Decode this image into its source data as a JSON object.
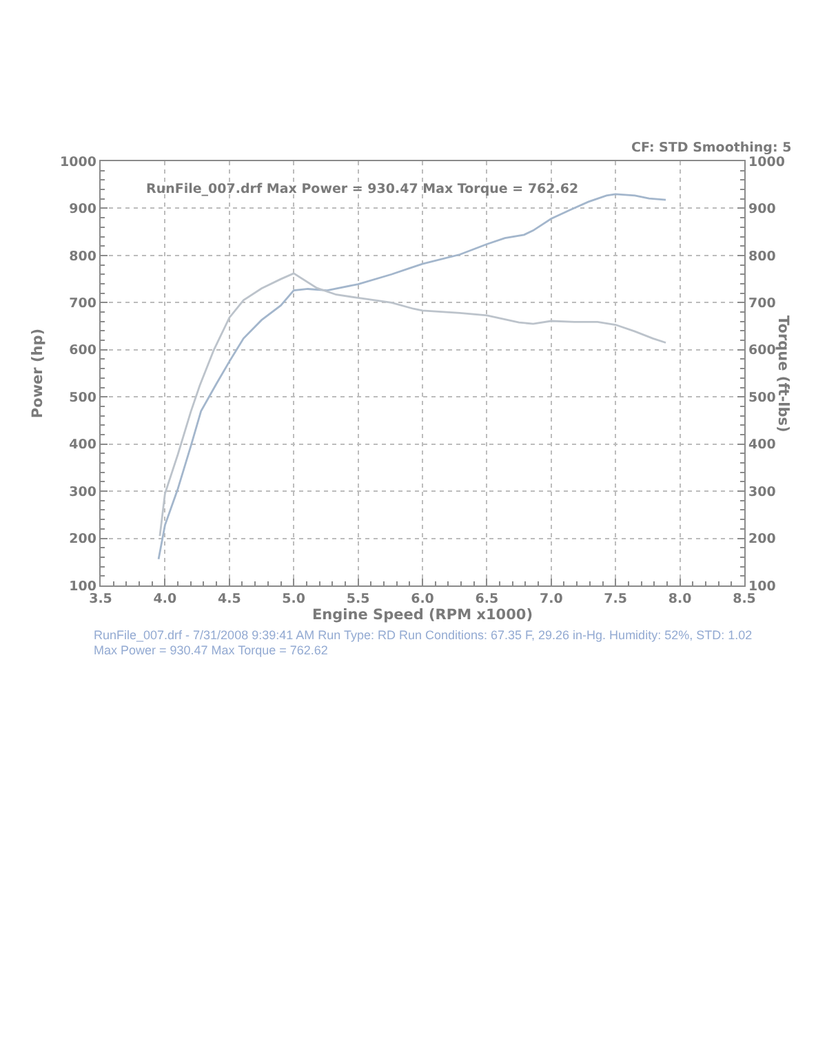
{
  "chart_data": {
    "type": "line",
    "annotations": [
      "CF: STD Smoothing: 5",
      "RunFile_007.drf Max Power = 930.47 Max Torque = 762.62",
      "RunFile_007.drf - 7/31/2008 9:39:41 AM Run Type: RD Run Conditions: 67.35 F, 29.26 in-Hg. Humidity: 52%, STD: 1.02",
      "Max Power = 930.47 Max Torque = 762.62"
    ],
    "xlabel": "Engine Speed (RPM x1000)",
    "ylabel": "Power (hp)",
    "y2label": "Torque (ft-lbs)",
    "xlim": [
      3.5,
      8.5
    ],
    "xticks": [
      3.5,
      {
        "value": 4,
        "label": "4.0"
      },
      4.5,
      {
        "value": 5,
        "label": "5.0"
      },
      5.5,
      {
        "value": 6,
        "label": "6.0"
      },
      6.5,
      {
        "value": 7,
        "label": "7.0"
      },
      7.5,
      {
        "value": 8,
        "label": "8.0"
      },
      8.5
    ],
    "ylim": [
      100,
      1000
    ],
    "yticks": [
      100,
      200,
      300,
      400,
      500,
      600,
      700,
      800,
      900,
      1000
    ],
    "y2lim": [
      100,
      1000
    ],
    "y2ticks": [
      100,
      200,
      300,
      400,
      500,
      600,
      700,
      800,
      900,
      1000
    ],
    "grid": true,
    "series": [
      {
        "color": "#a3b6cc",
        "x": [
          3.95,
          4.0,
          4.1,
          4.2,
          4.28,
          4.4,
          4.5,
          4.61,
          4.75,
          4.9,
          5.0,
          5.11,
          5.26,
          5.5,
          5.76,
          5.9,
          6.0,
          6.29,
          6.5,
          6.64,
          6.79,
          6.86,
          7.0,
          7.15,
          7.29,
          7.43,
          7.5,
          7.65,
          7.76,
          7.89
        ],
        "values": [
          156,
          228,
          305,
          395,
          470,
          528,
          575,
          624,
          663,
          694,
          726,
          729,
          726,
          739,
          760,
          773,
          782,
          802,
          824,
          837,
          844,
          853,
          878,
          897,
          914,
          927,
          930,
          927,
          921,
          918
        ]
      },
      {
        "axis": "y2",
        "color": "#bcc3cb",
        "x": [
          3.96,
          4.0,
          4.1,
          4.2,
          4.27,
          4.38,
          4.5,
          4.61,
          4.75,
          4.9,
          5.0,
          5.18,
          5.33,
          5.5,
          5.76,
          5.93,
          6.0,
          6.29,
          6.5,
          6.75,
          6.86,
          7.0,
          7.18,
          7.36,
          7.5,
          7.65,
          7.79,
          7.89
        ],
        "values": [
          205,
          295,
          378,
          468,
          524,
          600,
          668,
          705,
          730,
          750,
          762,
          731,
          717,
          710,
          700,
          687,
          683,
          678,
          673,
          658,
          655,
          661,
          659,
          659,
          653,
          639,
          624,
          615
        ]
      }
    ]
  }
}
